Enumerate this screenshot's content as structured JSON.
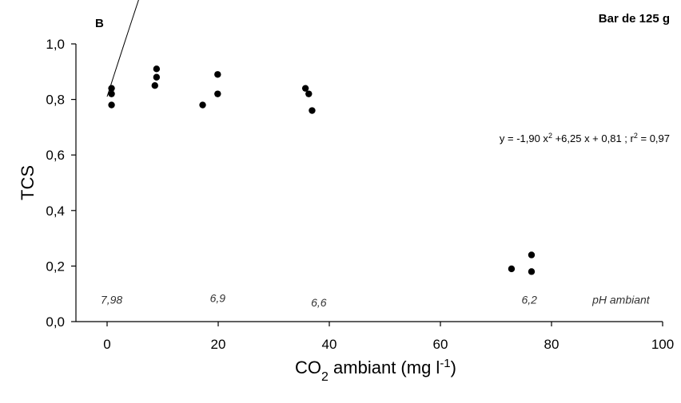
{
  "chart_data": {
    "type": "scatter",
    "panel_label": "B",
    "title": "Bar de 125 g",
    "ylabel": "TCS",
    "xlabel": {
      "pre": "CO",
      "sub": "2",
      "mid": " ambiant (mg l",
      "sup": "-1",
      "post": ")"
    },
    "xlim": [
      -5,
      100
    ],
    "ylim": [
      0,
      1.0
    ],
    "x_ticks": [
      0,
      20,
      40,
      60,
      80,
      100
    ],
    "x_tick_labels": [
      "0",
      "20",
      "40",
      "60",
      "80",
      "100"
    ],
    "y_ticks": [
      0,
      0.2,
      0.4,
      0.6,
      0.8,
      1.0
    ],
    "y_tick_labels": [
      "0,0",
      "0,2",
      "0,4",
      "0,6",
      "0,8",
      "1,0"
    ],
    "points": [
      {
        "x": 0.8,
        "y": 0.84
      },
      {
        "x": 0.8,
        "y": 0.82
      },
      {
        "x": 0.8,
        "y": 0.78
      },
      {
        "x": 8.9,
        "y": 0.91
      },
      {
        "x": 8.9,
        "y": 0.88
      },
      {
        "x": 8.6,
        "y": 0.85
      },
      {
        "x": 17.2,
        "y": 0.78
      },
      {
        "x": 19.9,
        "y": 0.89
      },
      {
        "x": 19.9,
        "y": 0.82
      },
      {
        "x": 35.7,
        "y": 0.84
      },
      {
        "x": 36.3,
        "y": 0.82
      },
      {
        "x": 36.9,
        "y": 0.76
      },
      {
        "x": 72.8,
        "y": 0.19
      },
      {
        "x": 76.4,
        "y": 0.24
      },
      {
        "x": 76.4,
        "y": 0.18
      }
    ],
    "fit": {
      "type": "quadratic",
      "coefficients": {
        "a": -1.9,
        "b": 6.25,
        "c": 0.81
      },
      "x_scale": 0.01,
      "x_range": [
        0,
        76.4
      ]
    },
    "equation": {
      "part1": "y = -1,90 x",
      "sup1": "2",
      "part2": " +6,25 x + 0,81 ; r",
      "sup2": "2",
      "part3": " = 0,97"
    },
    "annotations": [
      {
        "text": "7,98",
        "x": 0.8,
        "y": 0.065
      },
      {
        "text": "6,9",
        "x": 19.9,
        "y": 0.07
      },
      {
        "text": "6,6",
        "x": 38.1,
        "y": 0.055
      },
      {
        "text": "6,2",
        "x": 76.0,
        "y": 0.065
      },
      {
        "text": "pH ambiant",
        "x": 92.5,
        "y": 0.065
      }
    ],
    "grid": false,
    "legend": "none"
  }
}
